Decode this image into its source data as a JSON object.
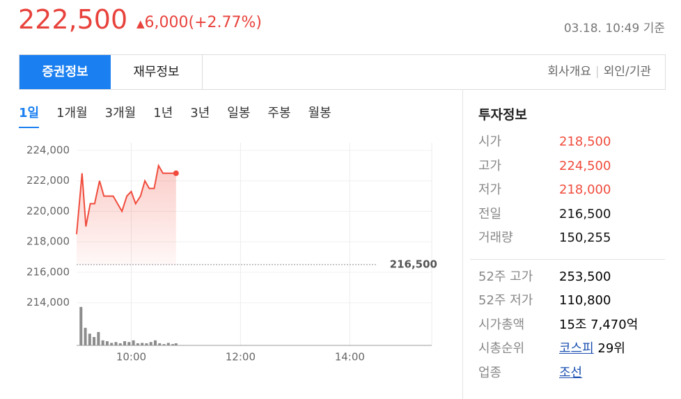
{
  "header": {
    "price": "222,500",
    "change": "6,000(+2.77%)",
    "timestamp": "03.18. 10:49 기준"
  },
  "tabs": [
    "증권정보",
    "재무정보"
  ],
  "links": [
    "회사개요",
    "외인/기관"
  ],
  "periods": [
    "1일",
    "1개월",
    "3개월",
    "1년",
    "3년",
    "일봉",
    "주봉",
    "월봉"
  ],
  "chart_data": {
    "type": "line",
    "x": [
      9.0,
      9.1,
      9.17,
      9.25,
      9.33,
      9.42,
      9.5,
      9.67,
      9.83,
      9.92,
      10.0,
      10.08,
      10.17,
      10.25,
      10.33,
      10.42,
      10.5,
      10.58,
      10.82
    ],
    "series": [
      {
        "color": "#f04b3c",
        "values": [
          218500,
          222500,
          219000,
          220500,
          220500,
          222000,
          221000,
          221000,
          220000,
          221000,
          221300,
          220500,
          221000,
          222000,
          221500,
          221500,
          223000,
          222500,
          222500
        ]
      }
    ],
    "xlim": [
      9,
      15.5
    ],
    "xticks": [
      {
        "value": 10,
        "label": "10:00"
      },
      {
        "value": 12,
        "label": "12:00"
      },
      {
        "value": 14,
        "label": "14:00"
      }
    ],
    "ylim": [
      211200,
      224500
    ],
    "yticks": [
      {
        "value": 214000,
        "label": "214,000"
      },
      {
        "value": 216000,
        "label": "216,000"
      },
      {
        "value": 218000,
        "label": "218,000"
      },
      {
        "value": 220000,
        "label": "220,000"
      },
      {
        "value": 222000,
        "label": "222,000"
      },
      {
        "value": 224000,
        "label": "224,000"
      }
    ],
    "grid": true,
    "prev_close": {
      "value": 216500,
      "label": "216,500"
    },
    "volume": {
      "color": "#8c8c8c",
      "ylim": [
        0,
        50000
      ],
      "x": [
        9.08,
        9.16,
        9.24,
        9.32,
        9.4,
        9.48,
        9.56,
        9.64,
        9.72,
        9.8,
        9.88,
        9.96,
        10.04,
        10.12,
        10.2,
        10.28,
        10.36,
        10.44,
        10.52,
        10.6,
        10.68,
        10.76,
        10.82
      ],
      "values": [
        46000,
        21000,
        14000,
        10000,
        16000,
        6000,
        5000,
        3000,
        4000,
        2500,
        5000,
        4000,
        6000,
        2500,
        3000,
        2500,
        4000,
        6000,
        2500,
        1500,
        3000,
        1500,
        2500
      ]
    }
  },
  "info": {
    "title": "투자정보",
    "rows": [
      {
        "label": "시가",
        "value": "218,500",
        "color": "#f04b3c"
      },
      {
        "label": "고가",
        "value": "224,500",
        "color": "#f04b3c"
      },
      {
        "label": "저가",
        "value": "218,000",
        "color": "#f04b3c"
      },
      {
        "label": "전일",
        "value": "216,500",
        "color": "#111111"
      },
      {
        "label": "거래량",
        "value": "150,255",
        "color": "#111111"
      }
    ],
    "rows2": [
      {
        "label": "52주 고가",
        "value": "253,500"
      },
      {
        "label": "52주 저가",
        "value": "110,800"
      },
      {
        "label": "시가총액",
        "value": "15조 7,470억"
      },
      {
        "label": "시총순위",
        "link": "코스피",
        "value": "29위"
      },
      {
        "label": "업종",
        "link": "조선"
      }
    ]
  }
}
